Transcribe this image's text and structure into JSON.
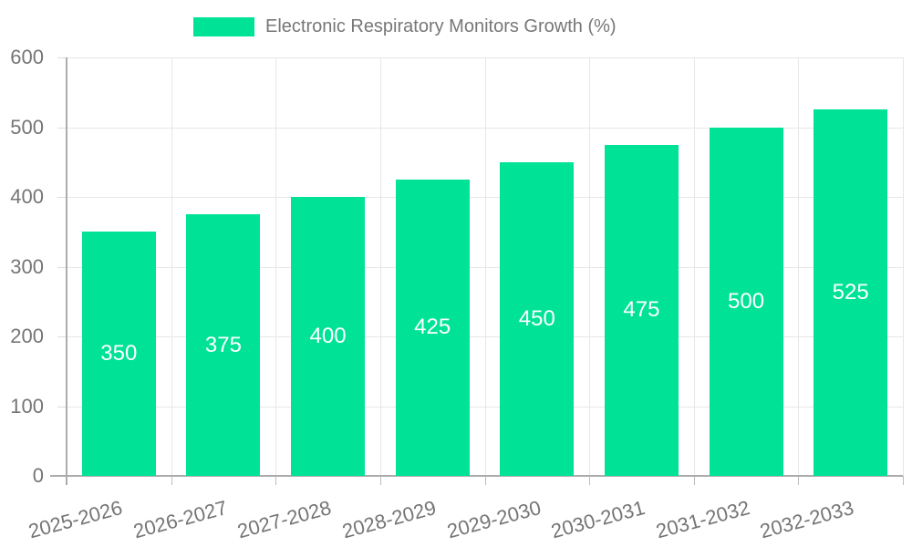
{
  "legend": {
    "label": "Electronic Respiratory Monitors Growth (%)",
    "marker_color": "#00E396",
    "position": "top"
  },
  "colors": {
    "bar": "#00E396",
    "grid": "#e7e7e7",
    "axis": "#acacac",
    "tick_text": "#757575",
    "legend_text": "#777777",
    "value_label": "#ffffff",
    "background": "#ffffff"
  },
  "chart_data": {
    "type": "bar",
    "title": "Electronic Respiratory Monitors Growth (%)",
    "categories": [
      "2025-2026",
      "2026-2027",
      "2027-2028",
      "2028-2029",
      "2029-2030",
      "2030-2031",
      "2031-2032",
      "2032-2033"
    ],
    "series": [
      {
        "name": "Electronic Respiratory Monitors Growth (%)",
        "values": [
          350,
          375,
          400,
          425,
          450,
          475,
          500,
          525
        ]
      }
    ],
    "value_labels": [
      350,
      375,
      400,
      425,
      450,
      475,
      500,
      525
    ],
    "xlabel": "",
    "ylabel": "",
    "ylim": [
      0,
      600
    ],
    "yticks": [
      0,
      100,
      200,
      300,
      400,
      500,
      600
    ],
    "grid": true,
    "legend_position": "top"
  }
}
